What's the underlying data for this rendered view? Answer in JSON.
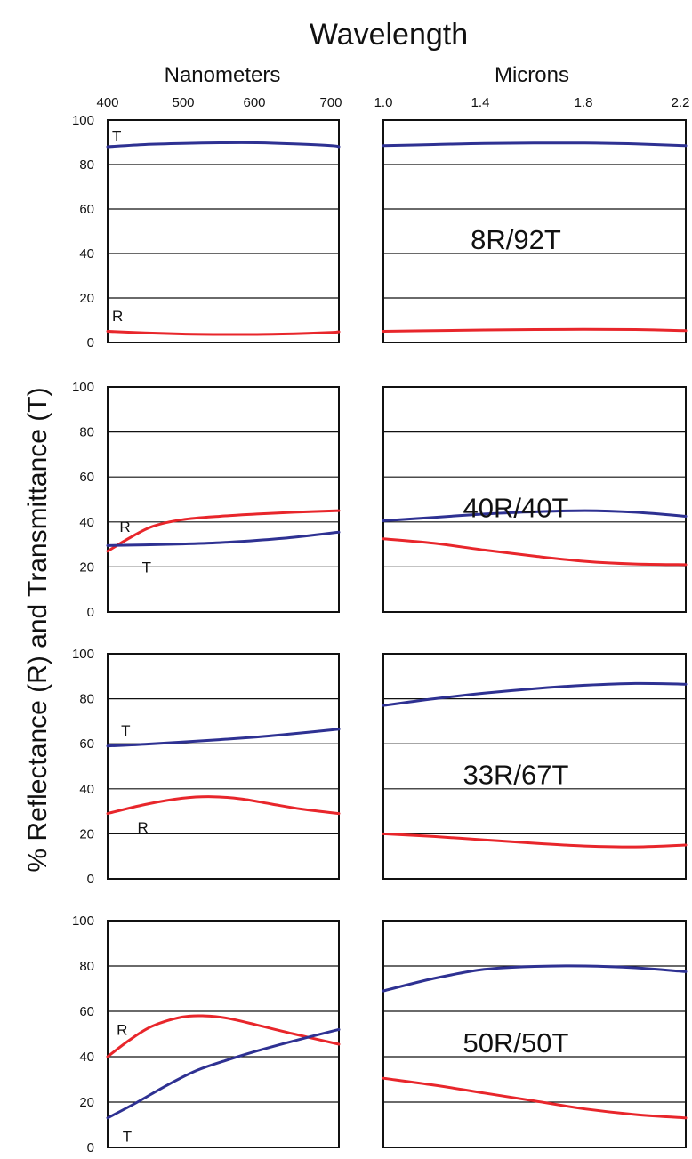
{
  "title": "Wavelength",
  "ylabel": "% Reflectance (R) and Transmittance (T)",
  "colors": {
    "R": "#e8262b",
    "T": "#2e3192"
  },
  "columns": [
    {
      "unit_label": "Nanometers",
      "ticks": [
        "400",
        "500",
        "600",
        "700"
      ]
    },
    {
      "unit_label": "Microns",
      "ticks": [
        "1.0",
        "1.4",
        "1.8",
        "2.2"
      ]
    }
  ],
  "y_ticks": [
    "100",
    "80",
    "60",
    "40",
    "20",
    "0"
  ],
  "chart_data": [
    {
      "type": "line",
      "label": "8R/92T",
      "xlim_nm": [
        400,
        710
      ],
      "xlim_um": [
        1.0,
        2.2
      ],
      "ylim": [
        0,
        100
      ],
      "grid": true,
      "series": [
        {
          "name": "T",
          "region": "nm",
          "x": [
            400,
            450,
            500,
            550,
            600,
            650,
            700,
            710
          ],
          "y": [
            88,
            89,
            89.5,
            89.8,
            89.8,
            89.3,
            88.5,
            88
          ]
        },
        {
          "name": "R",
          "region": "nm",
          "x": [
            400,
            450,
            500,
            550,
            600,
            650,
            700,
            710
          ],
          "y": [
            5,
            4.3,
            3.8,
            3.6,
            3.6,
            3.9,
            4.5,
            4.8
          ]
        },
        {
          "name": "T",
          "region": "um",
          "x": [
            1.0,
            1.2,
            1.4,
            1.6,
            1.8,
            2.0,
            2.2
          ],
          "y": [
            88.5,
            89,
            89.5,
            89.7,
            89.7,
            89.3,
            88.5
          ]
        },
        {
          "name": "R",
          "region": "um",
          "x": [
            1.0,
            1.2,
            1.4,
            1.6,
            1.8,
            2.0,
            2.2
          ],
          "y": [
            5,
            5.3,
            5.6,
            5.8,
            5.9,
            5.8,
            5.3
          ]
        }
      ],
      "annotations": [
        {
          "text": "T",
          "series": "T",
          "region": "nm",
          "x": 406,
          "y": 93
        },
        {
          "text": "R",
          "series": "R",
          "region": "nm",
          "x": 406,
          "y": 12
        }
      ]
    },
    {
      "type": "line",
      "label": "40R/40T",
      "xlim_nm": [
        400,
        710
      ],
      "xlim_um": [
        1.0,
        2.2
      ],
      "ylim": [
        0,
        100
      ],
      "grid": true,
      "series": [
        {
          "name": "R",
          "region": "nm",
          "x": [
            400,
            430,
            460,
            500,
            550,
            600,
            650,
            710
          ],
          "y": [
            27,
            33,
            38,
            41,
            42.5,
            43.5,
            44.3,
            45
          ]
        },
        {
          "name": "T",
          "region": "nm",
          "x": [
            400,
            450,
            500,
            550,
            600,
            650,
            710
          ],
          "y": [
            29.5,
            29.8,
            30.2,
            30.8,
            31.8,
            33.2,
            35.5
          ]
        },
        {
          "name": "T",
          "region": "um",
          "x": [
            1.0,
            1.2,
            1.4,
            1.6,
            1.8,
            2.0,
            2.2
          ],
          "y": [
            40.5,
            42,
            43.5,
            44.5,
            45,
            44.3,
            42.5
          ]
        },
        {
          "name": "R",
          "region": "um",
          "x": [
            1.0,
            1.2,
            1.4,
            1.6,
            1.8,
            2.0,
            2.2
          ],
          "y": [
            32.5,
            30.5,
            27.5,
            24.8,
            22.5,
            21.3,
            21
          ]
        }
      ],
      "annotations": [
        {
          "text": "R",
          "series": "R",
          "region": "nm",
          "x": 416,
          "y": 38
        },
        {
          "text": "T",
          "series": "T",
          "region": "nm",
          "x": 446,
          "y": 20
        }
      ]
    },
    {
      "type": "line",
      "label": "33R/67T",
      "xlim_nm": [
        400,
        710
      ],
      "xlim_um": [
        1.0,
        2.2
      ],
      "ylim": [
        0,
        100
      ],
      "grid": true,
      "series": [
        {
          "name": "T",
          "region": "nm",
          "x": [
            400,
            450,
            500,
            550,
            600,
            650,
            710
          ],
          "y": [
            59,
            59.8,
            60.8,
            61.8,
            63,
            64.5,
            66.5
          ]
        },
        {
          "name": "R",
          "region": "nm",
          "x": [
            400,
            450,
            500,
            540,
            580,
            620,
            660,
            710
          ],
          "y": [
            29,
            33,
            35.8,
            36.5,
            35.5,
            33.2,
            31,
            29
          ]
        },
        {
          "name": "T",
          "region": "um",
          "x": [
            1.0,
            1.2,
            1.4,
            1.6,
            1.8,
            2.0,
            2.2
          ],
          "y": [
            77,
            80,
            82.5,
            84.5,
            86,
            86.8,
            86.5
          ]
        },
        {
          "name": "R",
          "region": "um",
          "x": [
            1.0,
            1.2,
            1.4,
            1.6,
            1.8,
            2.0,
            2.2
          ],
          "y": [
            20,
            18.8,
            17.3,
            15.8,
            14.6,
            14.2,
            15
          ]
        }
      ],
      "annotations": [
        {
          "text": "T",
          "series": "T",
          "region": "nm",
          "x": 418,
          "y": 66
        },
        {
          "text": "R",
          "series": "R",
          "region": "nm",
          "x": 440,
          "y": 23
        }
      ]
    },
    {
      "type": "line",
      "label": "50R/50T",
      "xlim_nm": [
        400,
        710
      ],
      "xlim_um": [
        1.0,
        2.2
      ],
      "ylim": [
        0,
        100
      ],
      "grid": true,
      "series": [
        {
          "name": "R",
          "region": "nm",
          "x": [
            400,
            430,
            460,
            500,
            530,
            560,
            600,
            650,
            710
          ],
          "y": [
            40,
            47.5,
            53.5,
            57.5,
            58,
            57,
            54,
            50,
            45.5
          ]
        },
        {
          "name": "T",
          "region": "nm",
          "x": [
            400,
            440,
            480,
            520,
            560,
            600,
            650,
            710
          ],
          "y": [
            13,
            20,
            27.5,
            34,
            38.5,
            42.5,
            47,
            52
          ]
        },
        {
          "name": "T",
          "region": "um",
          "x": [
            1.0,
            1.2,
            1.4,
            1.6,
            1.8,
            2.0,
            2.2
          ],
          "y": [
            69,
            74.5,
            78.5,
            79.8,
            80,
            79.2,
            77.5
          ]
        },
        {
          "name": "R",
          "region": "um",
          "x": [
            1.0,
            1.2,
            1.4,
            1.6,
            1.8,
            2.0,
            2.2
          ],
          "y": [
            30.5,
            27.5,
            24,
            20.5,
            17,
            14.5,
            13
          ]
        }
      ],
      "annotations": [
        {
          "text": "R",
          "series": "R",
          "region": "nm",
          "x": 412,
          "y": 52
        },
        {
          "text": "T",
          "series": "T",
          "region": "nm",
          "x": 420,
          "y": 5
        }
      ]
    }
  ]
}
